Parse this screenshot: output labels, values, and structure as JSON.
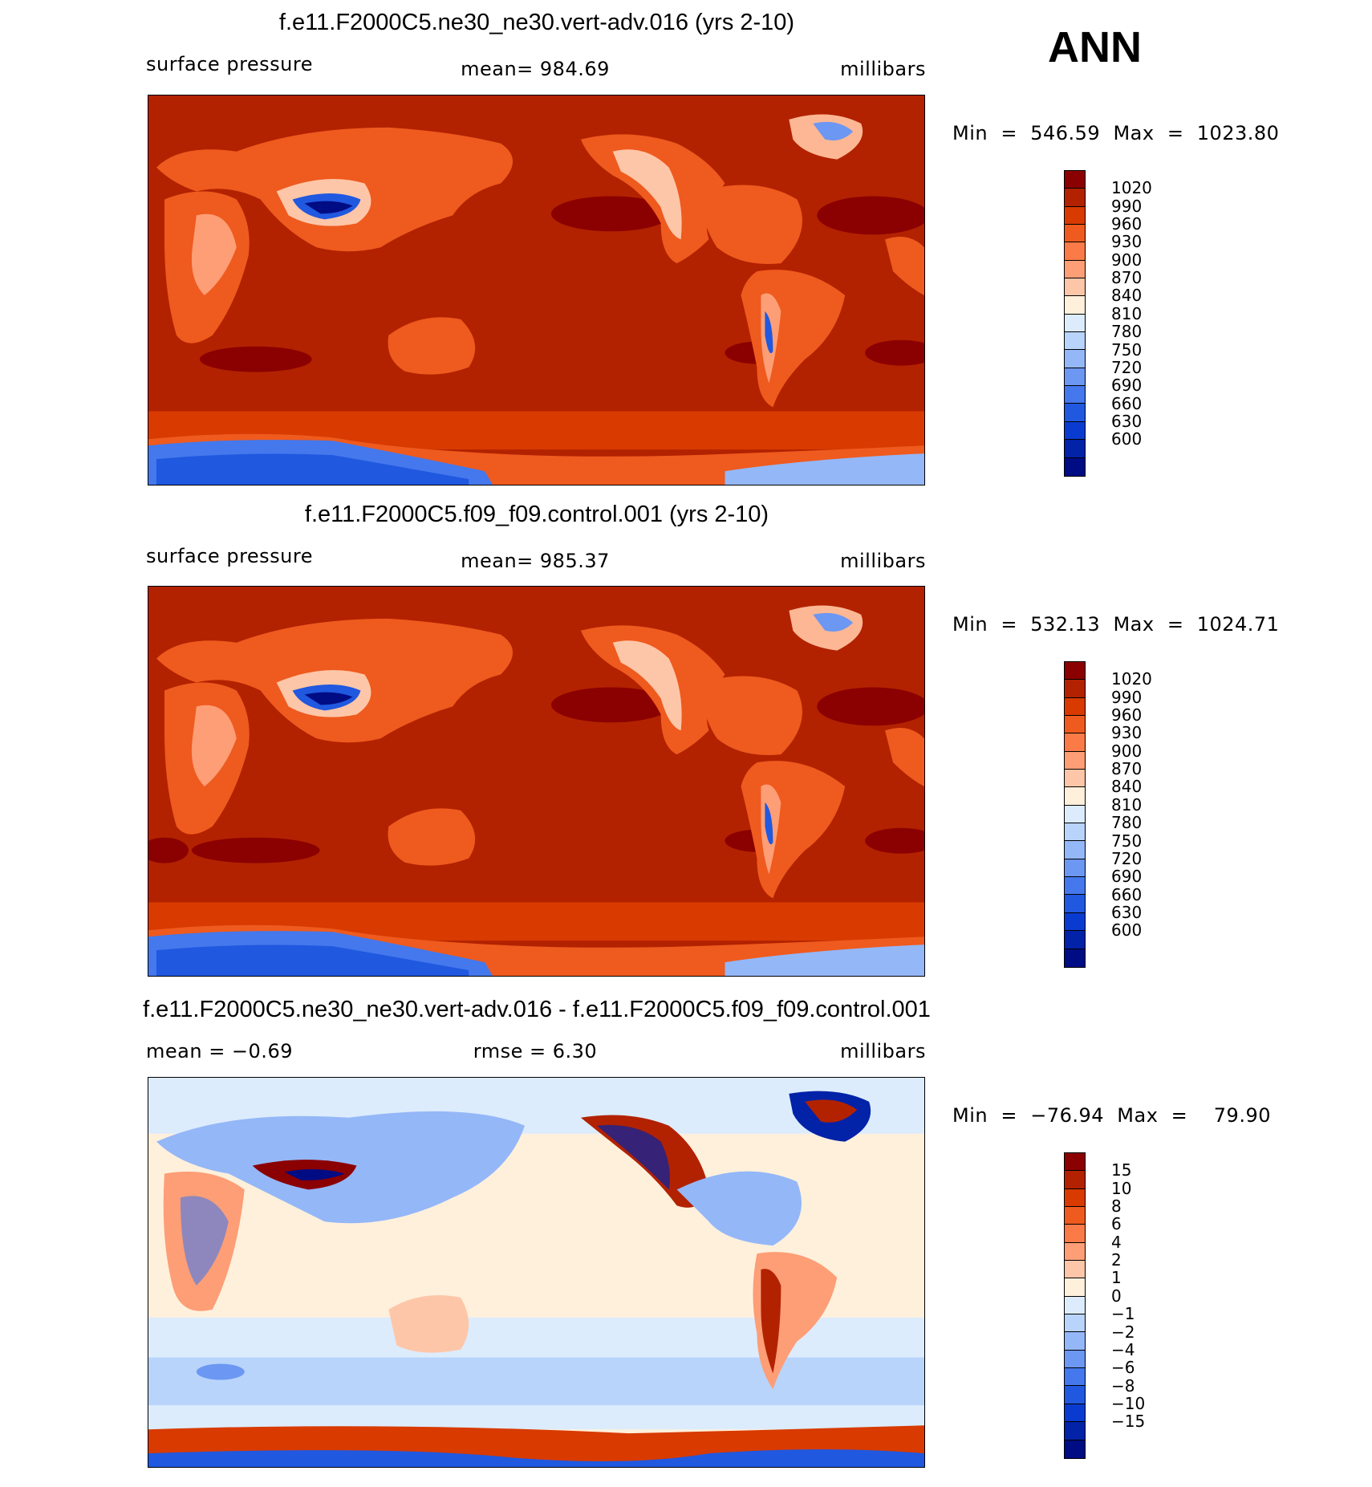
{
  "season": "ANN",
  "panels": [
    {
      "id": "test",
      "title": "f.e11.F2000C5.ne30_ne30.vert-adv.016 (yrs 2-10)",
      "left_label": "surface pressure",
      "center_label": "mean=  984.69",
      "right_label": "millibars",
      "minmax": "Min  =  546.59  Max  =  1023.80",
      "colorbar": {
        "colors": [
          "#8b0000",
          "#b22200",
          "#d83a00",
          "#ef5a1e",
          "#fa7a48",
          "#fd9e76",
          "#fec6a8",
          "#fff0dc",
          "#dcecfc",
          "#b8d4fb",
          "#94b7f8",
          "#6c97f2",
          "#4478ec",
          "#2058e0",
          "#0a3bd0",
          "#0222a8",
          "#000c84"
        ],
        "labels": [
          "1020",
          "990",
          "960",
          "930",
          "900",
          "870",
          "840",
          "810",
          "780",
          "750",
          "720",
          "690",
          "660",
          "630",
          "600"
        ]
      }
    },
    {
      "id": "control",
      "title": "f.e11.F2000C5.f09_f09.control.001 (yrs 2-10)",
      "left_label": "surface pressure",
      "center_label": "mean=  985.37",
      "right_label": "millibars",
      "minmax": "Min  =  532.13  Max  =  1024.71",
      "colorbar": {
        "colors": [
          "#8b0000",
          "#b22200",
          "#d83a00",
          "#ef5a1e",
          "#fa7a48",
          "#fd9e76",
          "#fec6a8",
          "#fff0dc",
          "#dcecfc",
          "#b8d4fb",
          "#94b7f8",
          "#6c97f2",
          "#4478ec",
          "#2058e0",
          "#0a3bd0",
          "#0222a8",
          "#000c84"
        ],
        "labels": [
          "1020",
          "990",
          "960",
          "930",
          "900",
          "870",
          "840",
          "810",
          "780",
          "750",
          "720",
          "690",
          "660",
          "630",
          "600"
        ]
      }
    },
    {
      "id": "difference",
      "title": "f.e11.F2000C5.ne30_ne30.vert-adv.016 - f.e11.F2000C5.f09_f09.control.001",
      "left_label": "mean  =   −0.69",
      "center_label": "rmse  =     6.30",
      "right_label": "millibars",
      "minmax": "Min  =  −76.94  Max  =    79.90",
      "colorbar": {
        "colors": [
          "#8b0000",
          "#b22200",
          "#d83a00",
          "#ef5a1e",
          "#fa7a48",
          "#fd9e76",
          "#fec6a8",
          "#fff0dc",
          "#dcecfc",
          "#b8d4fb",
          "#94b7f8",
          "#6c97f2",
          "#4478ec",
          "#2058e0",
          "#0a3bd0",
          "#0222a8",
          "#000c84"
        ],
        "labels": [
          "15",
          "10",
          "8",
          "6",
          "4",
          "2",
          "1",
          "0",
          "−1",
          "−2",
          "−4",
          "−6",
          "−8",
          "−10",
          "−15"
        ]
      }
    }
  ]
}
